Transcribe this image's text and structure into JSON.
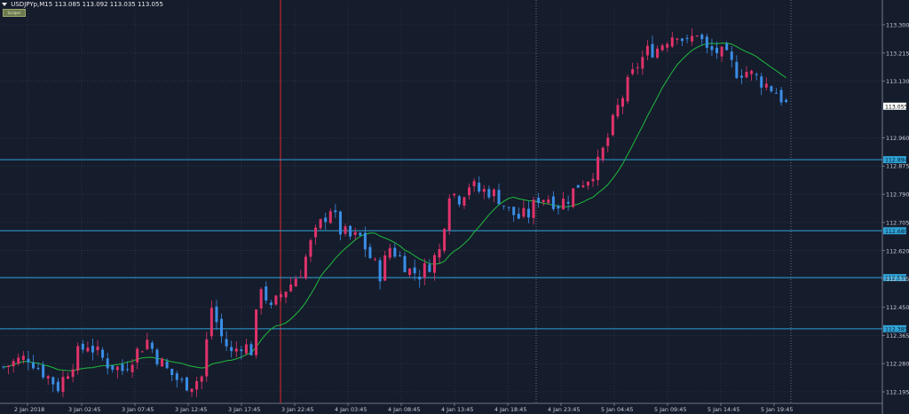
{
  "header": {
    "symbol_text": "USDJPYp,M15",
    "ohlc_text": "113.085 113.092 113.035 113.055",
    "badge_text": "Scalper"
  },
  "colors": {
    "background": "#151c2c",
    "grid": "#3a4457",
    "axis_text": "#c8ccd4",
    "bull": "#e0336a",
    "bear": "#3a8ee6",
    "ma": "#1fae3c",
    "hline": "#2fa3d6",
    "vline_red": "#e02a2a",
    "price_box": "#ffffff",
    "hline_label_bg": "#2fa3d6"
  },
  "chart_data": {
    "type": "candlestick",
    "ylim": [
      112.15,
      113.35
    ],
    "y_ticks": [
      "113.300",
      "113.215",
      "113.130",
      "112.960",
      "112.875",
      "112.790",
      "112.705",
      "112.620",
      "112.535",
      "112.450",
      "112.365",
      "112.280",
      "112.195"
    ],
    "x_tick_labels": [
      "2 Jan 2018",
      "3 Jan 02:45",
      "3 Jan 07:45",
      "3 Jan 12:45",
      "3 Jan 17:45",
      "3 Jan 22:45",
      "4 Jan 03:45",
      "4 Jan 08:45",
      "4 Jan 13:45",
      "4 Jan 18:45",
      "4 Jan 23:45",
      "5 Jan 04:45",
      "5 Jan 09:45",
      "5 Jan 14:45",
      "5 Jan 19:45"
    ],
    "current_price": "113.055",
    "horizontal_levels": [
      {
        "value": 112.894,
        "label": "112.894"
      },
      {
        "value": 112.68,
        "label": "112.680"
      },
      {
        "value": 112.539,
        "label": "112.539"
      },
      {
        "value": 112.385,
        "label": "112.385"
      }
    ],
    "vertical_markers": [
      {
        "at_label": "3 Jan 22:45",
        "style": "solid-red"
      },
      {
        "at_label": "4 Jan 23:45",
        "style": "dotted"
      },
      {
        "at_label": "5 Jan 19:45",
        "style": "dotted"
      }
    ],
    "price_path": [
      [
        0,
        112.27
      ],
      [
        3,
        112.29
      ],
      [
        5,
        112.3
      ],
      [
        7,
        112.27
      ],
      [
        9,
        112.24
      ],
      [
        11,
        112.21
      ],
      [
        13,
        112.26
      ],
      [
        15,
        112.31
      ],
      [
        17,
        112.34
      ],
      [
        19,
        112.31
      ],
      [
        21,
        112.28
      ],
      [
        24,
        112.26
      ],
      [
        26,
        112.3
      ],
      [
        29,
        112.35
      ],
      [
        31,
        112.3
      ],
      [
        33,
        112.26
      ],
      [
        36,
        112.22
      ],
      [
        38,
        112.22
      ],
      [
        40,
        112.24
      ],
      [
        42,
        112.45
      ],
      [
        44,
        112.36
      ],
      [
        46,
        112.31
      ],
      [
        48,
        112.34
      ],
      [
        50,
        112.32
      ],
      [
        52,
        112.52
      ],
      [
        54,
        112.44
      ],
      [
        56,
        112.49
      ],
      [
        58,
        112.52
      ],
      [
        60,
        112.56
      ],
      [
        62,
        112.64
      ],
      [
        64,
        112.7
      ],
      [
        66,
        112.75
      ],
      [
        68,
        112.68
      ],
      [
        70,
        112.66
      ],
      [
        72,
        112.66
      ],
      [
        74,
        112.6
      ],
      [
        76,
        112.55
      ],
      [
        78,
        112.63
      ],
      [
        80,
        112.6
      ],
      [
        82,
        112.56
      ],
      [
        84,
        112.55
      ],
      [
        86,
        112.58
      ],
      [
        88,
        112.62
      ],
      [
        90,
        112.8
      ],
      [
        92,
        112.78
      ],
      [
        94,
        112.82
      ],
      [
        96,
        112.8
      ],
      [
        98,
        112.8
      ],
      [
        100,
        112.78
      ],
      [
        102,
        112.74
      ],
      [
        104,
        112.72
      ],
      [
        106,
        112.73
      ],
      [
        108,
        112.78
      ],
      [
        110,
        112.78
      ],
      [
        112,
        112.76
      ],
      [
        114,
        112.78
      ],
      [
        116,
        112.82
      ],
      [
        118,
        112.84
      ],
      [
        120,
        112.88
      ],
      [
        122,
        112.96
      ],
      [
        124,
        113.05
      ],
      [
        126,
        113.12
      ],
      [
        128,
        113.18
      ],
      [
        130,
        113.22
      ],
      [
        132,
        113.23
      ],
      [
        134,
        113.26
      ],
      [
        136,
        113.28
      ],
      [
        138,
        113.24
      ],
      [
        140,
        113.28
      ],
      [
        142,
        113.22
      ],
      [
        144,
        113.22
      ],
      [
        146,
        113.2
      ],
      [
        148,
        113.16
      ],
      [
        150,
        113.16
      ],
      [
        152,
        113.14
      ],
      [
        154,
        113.12
      ],
      [
        156,
        113.1
      ],
      [
        158,
        113.06
      ]
    ]
  }
}
